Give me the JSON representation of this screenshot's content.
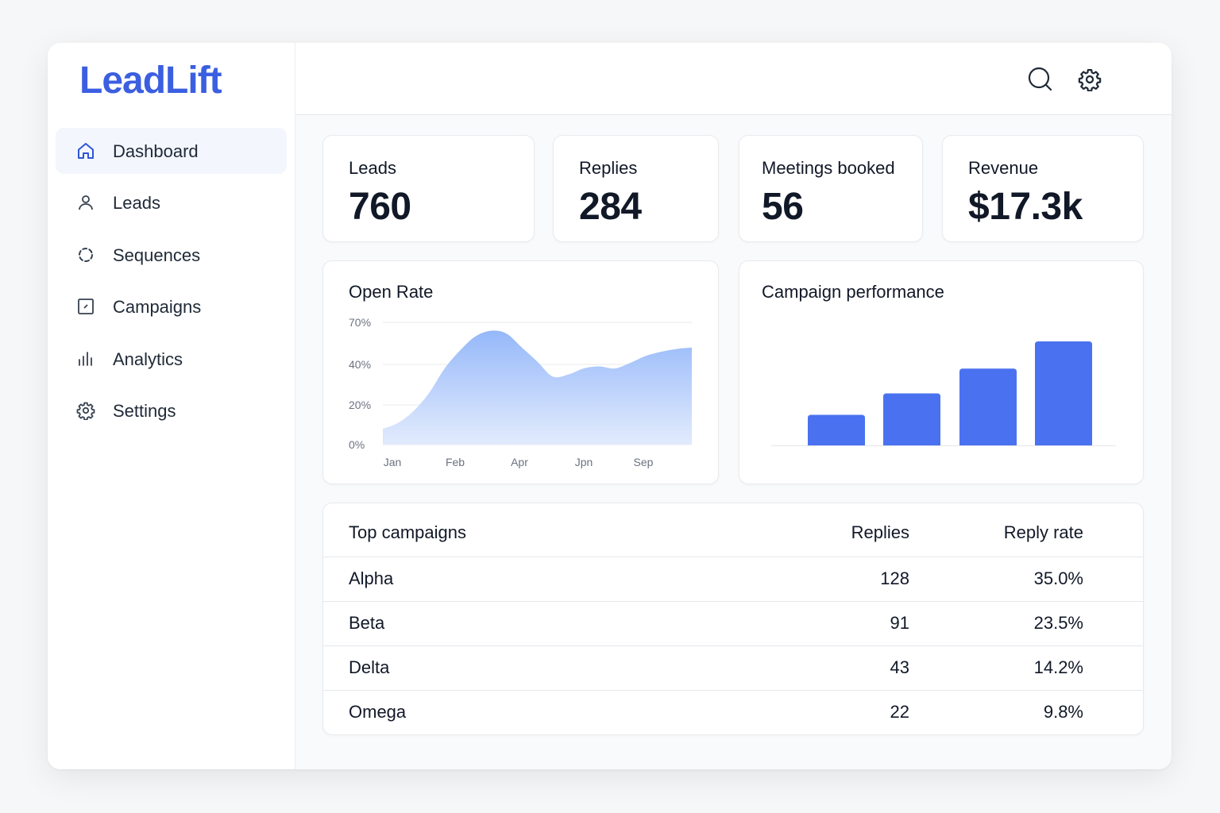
{
  "app": {
    "logo": "LeadLift",
    "brand_color": "#3b5fe0"
  },
  "sidebar": {
    "items": [
      {
        "label": "Dashboard",
        "icon": "home-icon",
        "active": true
      },
      {
        "label": "Leads",
        "icon": "user-icon"
      },
      {
        "label": "Sequences",
        "icon": "sequence-loop-icon"
      },
      {
        "label": "Campaigns",
        "icon": "campaign-square-icon"
      },
      {
        "label": "Analytics",
        "icon": "bar-chart-icon"
      },
      {
        "label": "Settings",
        "icon": "gear-icon"
      }
    ]
  },
  "header": {
    "icons": [
      "search-icon",
      "gear-icon"
    ]
  },
  "stats": [
    {
      "label": "Leads",
      "value": "760"
    },
    {
      "label": "Replies",
      "value": "284"
    },
    {
      "label": "Meetings booked",
      "value": "56"
    },
    {
      "label": "Revenue",
      "value": "$17.3k"
    }
  ],
  "open_rate": {
    "title": "Open Rate"
  },
  "campaign_performance": {
    "title": "Campaign performance"
  },
  "chart_data": [
    {
      "type": "area",
      "title": "Open Rate",
      "x_tick_labels": [
        "Jan",
        "Feb",
        "Apr",
        "Jpn",
        "Sep"
      ],
      "y_tick_labels": [
        "0%",
        "20%",
        "40%",
        "70%"
      ],
      "y_tick_values": [
        0,
        20,
        40,
        70
      ],
      "ylim": [
        0,
        70
      ],
      "x": [
        0,
        1,
        2,
        3,
        4,
        5,
        6,
        7,
        8,
        9,
        10,
        11,
        12,
        13,
        14,
        15,
        16,
        17,
        18,
        19,
        20
      ],
      "values": [
        8,
        11,
        17,
        26,
        38,
        50,
        60,
        64,
        62,
        52,
        42,
        34,
        35,
        38,
        39,
        38,
        41,
        46,
        49,
        51,
        52
      ],
      "color": "#8fb4f9",
      "grid": true
    },
    {
      "type": "bar",
      "title": "Campaign performance",
      "values": [
        37,
        63,
        93,
        126
      ],
      "color": "#4a72f0"
    }
  ],
  "table": {
    "headers": {
      "name": "Top campaigns",
      "replies": "Replies",
      "rate": "Reply rate"
    },
    "rows": [
      {
        "name": "Alpha",
        "replies": "128",
        "rate": "35.0%"
      },
      {
        "name": "Beta",
        "replies": "91",
        "rate": "23.5%"
      },
      {
        "name": "Delta",
        "replies": "43",
        "rate": "14.2%"
      },
      {
        "name": "Omega",
        "replies": "22",
        "rate": "9.8%"
      }
    ]
  }
}
